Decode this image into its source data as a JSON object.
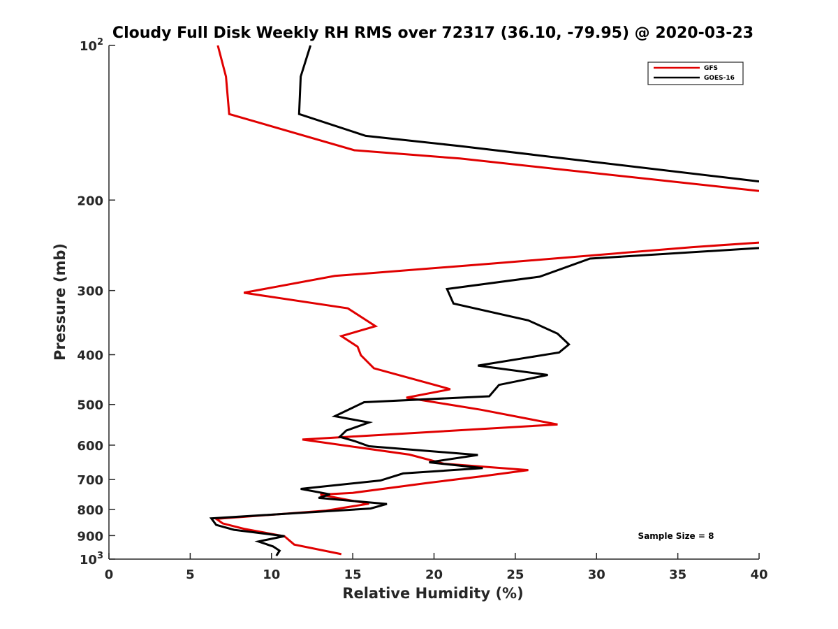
{
  "chart_data": {
    "type": "line",
    "title": "Cloudy Full Disk Weekly RH RMS over 72317 (36.10, -79.95) @ 2020-03-23",
    "xlabel": "Relative Humidity (%)",
    "ylabel": "Pressure (mb)",
    "xlim": [
      0,
      40
    ],
    "ylim": [
      100,
      1000
    ],
    "y_scale": "log",
    "y_reversed": true,
    "grid": false,
    "legend_position": "top-right",
    "x_ticks": [
      {
        "value": 0,
        "label": "0"
      },
      {
        "value": 5,
        "label": "5"
      },
      {
        "value": 10,
        "label": "10"
      },
      {
        "value": 15,
        "label": "15"
      },
      {
        "value": 20,
        "label": "20"
      },
      {
        "value": 25,
        "label": "25"
      },
      {
        "value": 30,
        "label": "30"
      },
      {
        "value": 35,
        "label": "35"
      },
      {
        "value": 40,
        "label": "40"
      }
    ],
    "y_ticks": [
      {
        "value": 100,
        "base": "10",
        "exp": "2"
      },
      {
        "value": 200,
        "base": "200",
        "exp": ""
      },
      {
        "value": 300,
        "base": "300",
        "exp": ""
      },
      {
        "value": 400,
        "base": "400",
        "exp": ""
      },
      {
        "value": 500,
        "base": "500",
        "exp": ""
      },
      {
        "value": 600,
        "base": "600",
        "exp": ""
      },
      {
        "value": 700,
        "base": "700",
        "exp": ""
      },
      {
        "value": 800,
        "base": "800",
        "exp": ""
      },
      {
        "value": 900,
        "base": "900",
        "exp": ""
      },
      {
        "value": 1000,
        "base": "10",
        "exp": "3"
      }
    ],
    "annotation": "Sample Size = 8",
    "series": [
      {
        "name": "GFS",
        "color": "#e00000",
        "points": [
          [
            6.7,
            100
          ],
          [
            7.2,
            115
          ],
          [
            7.4,
            136
          ],
          [
            15.1,
            160
          ],
          [
            21.6,
            166
          ],
          [
            40.0,
            192
          ],
          [
            null,
            null
          ],
          [
            40.0,
            242
          ],
          [
            35.9,
            247
          ],
          [
            23.5,
            266
          ],
          [
            13.9,
            281
          ],
          [
            8.3,
            303
          ],
          [
            14.7,
            325
          ],
          [
            16.4,
            352
          ],
          [
            14.3,
            368
          ],
          [
            15.3,
            386
          ],
          [
            15.5,
            401
          ],
          [
            16.3,
            425
          ],
          [
            21.0,
            467
          ],
          [
            18.3,
            485
          ],
          [
            22.9,
            512
          ],
          [
            27.6,
            547
          ],
          [
            11.9,
            585
          ],
          [
            18.5,
            626
          ],
          [
            20.6,
            652
          ],
          [
            25.8,
            671
          ],
          [
            22.9,
            690
          ],
          [
            19.7,
            710
          ],
          [
            15.0,
            743
          ],
          [
            13.0,
            749
          ],
          [
            14.8,
            768
          ],
          [
            16.0,
            780
          ],
          [
            13.3,
            805
          ],
          [
            6.6,
            835
          ],
          [
            7.0,
            852
          ],
          [
            8.3,
            873
          ],
          [
            10.8,
            903
          ],
          [
            11.4,
            937
          ],
          [
            14.3,
            978
          ]
        ]
      },
      {
        "name": "GOES-16",
        "color": "#000000",
        "points": [
          [
            12.4,
            100
          ],
          [
            11.8,
            115
          ],
          [
            11.7,
            136
          ],
          [
            15.8,
            150
          ],
          [
            21.6,
            157
          ],
          [
            40.0,
            184
          ],
          [
            null,
            null
          ],
          [
            40.0,
            248
          ],
          [
            29.6,
            260
          ],
          [
            26.5,
            282
          ],
          [
            20.8,
            298
          ],
          [
            21.2,
            318
          ],
          [
            25.8,
            343
          ],
          [
            27.6,
            364
          ],
          [
            28.3,
            382
          ],
          [
            27.7,
            396
          ],
          [
            22.7,
            420
          ],
          [
            27.0,
            438
          ],
          [
            24.0,
            458
          ],
          [
            23.4,
            482
          ],
          [
            15.7,
            495
          ],
          [
            13.9,
            527
          ],
          [
            16.0,
            542
          ],
          [
            14.6,
            562
          ],
          [
            14.2,
            578
          ],
          [
            15.1,
            589
          ],
          [
            16.0,
            603
          ],
          [
            22.7,
            627
          ],
          [
            19.7,
            648
          ],
          [
            23.0,
            665
          ],
          [
            18.1,
            681
          ],
          [
            16.7,
            703
          ],
          [
            11.8,
            730
          ],
          [
            13.6,
            748
          ],
          [
            12.9,
            760
          ],
          [
            17.1,
            781
          ],
          [
            16.1,
            797
          ],
          [
            6.3,
            833
          ],
          [
            6.6,
            858
          ],
          [
            7.7,
            877
          ],
          [
            10.8,
            902
          ],
          [
            9.2,
            924
          ],
          [
            10.1,
            945
          ],
          [
            10.5,
            963
          ],
          [
            10.3,
            985
          ]
        ]
      }
    ]
  }
}
